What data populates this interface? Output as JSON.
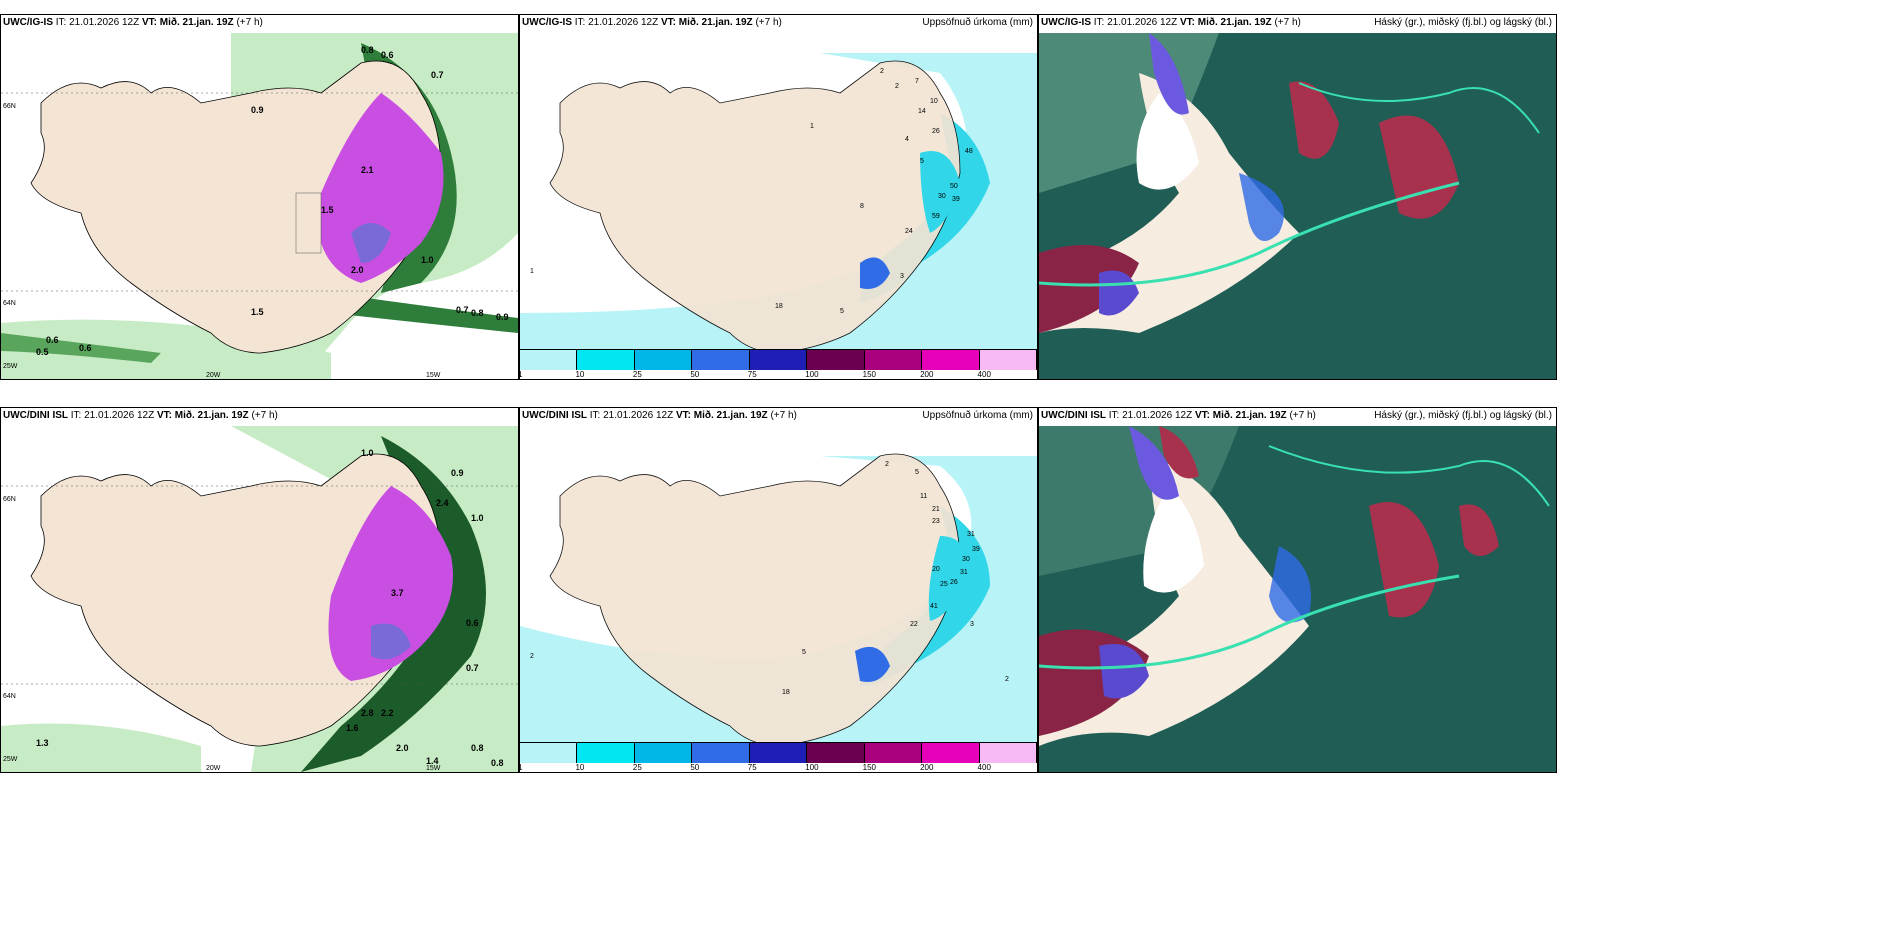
{
  "colors": {
    "land": "#f3e4d4",
    "sea": "#ffffff",
    "cyan_light": "#b8f4f7",
    "cyan": "#31d7e8",
    "magenta": "#c94ee2",
    "green_light": "#c7ecc5",
    "green_dark": "#1c5c2a",
    "cloud_bg": "#1f5d55"
  },
  "rows": [
    {
      "model": "UWC/IG-IS",
      "it_label": "IT:",
      "it_value": "21.01.2026 12Z",
      "vt_label": "VT:",
      "vt_value": "Mið. 21.jan. 19Z",
      "lead": "(+7 h)"
    },
    {
      "model": "UWC/DINI ISL",
      "it_label": "IT:",
      "it_value": "21.01.2026 12Z",
      "vt_label": "VT:",
      "vt_value": "Mið. 21.jan. 19Z",
      "lead": "(+7 h)"
    }
  ],
  "panel_titles": {
    "precip": "Uppsöfnuð úrkoma (mm)",
    "cloud": "Háský (gr.), miðský (fj.bl.) og lágský (bl.)"
  },
  "axis_labels": {
    "lat_66": "66N",
    "lat_64": "64N",
    "lat_25w": "25W",
    "lon_20w": "20W",
    "lon_15w": "15W"
  },
  "legend": {
    "ticks": [
      "1",
      "10",
      "25",
      "50",
      "75",
      "100",
      "150",
      "200",
      "400"
    ],
    "colors": [
      "#b8f4f7",
      "#00e7f2",
      "#00b7e8",
      "#2f6ce6",
      "#1f1fb6",
      "#6b0050",
      "#a8007e",
      "#e600b8",
      "#f7b9f3"
    ]
  },
  "precip_labels_top": [
    "2",
    "7",
    "2",
    "10",
    "14",
    "26",
    "4",
    "48",
    "5",
    "50",
    "30",
    "39",
    "59",
    "1",
    "8",
    "24",
    "3",
    "18",
    "5",
    "1"
  ],
  "precip_labels_bottom": [
    "2",
    "5",
    "11",
    "21",
    "23",
    "31",
    "39",
    "30",
    "31",
    "26",
    "20",
    "25",
    "41",
    "22",
    "18",
    "5",
    "3",
    "2",
    "2"
  ],
  "wind_labels_top": [
    "0.8",
    "0.6",
    "0.7",
    "0.9",
    "1.5",
    "1.0",
    "2.1",
    "0.6",
    "0.5",
    "0.6",
    "0.8",
    "0.9",
    "0.7",
    "1.5",
    "2.0"
  ],
  "wind_labels_bottom": [
    "1.0",
    "0.9",
    "2.4",
    "1.0",
    "3.7",
    "0.6",
    "0.7",
    "2.8",
    "2.2",
    "1.6",
    "2.0",
    "0.8",
    "1.4",
    "0.8",
    "1.3"
  ]
}
